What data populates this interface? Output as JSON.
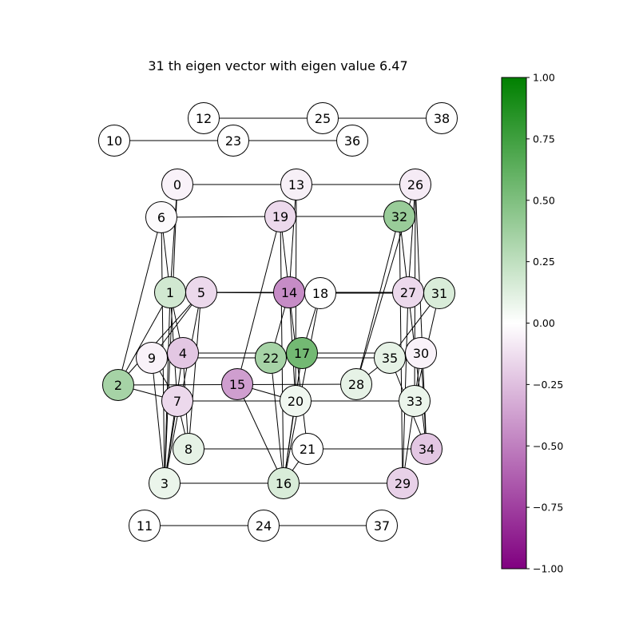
{
  "title": "31 th eigen vector with eigen value 6.47",
  "colorbar": {
    "min": -1.0,
    "max": 1.0,
    "ticks": [
      "1.00",
      "0.75",
      "0.50",
      "0.25",
      "0.00",
      "−0.25",
      "−0.50",
      "−0.75",
      "−1.00"
    ],
    "tick_values": [
      1.0,
      0.75,
      0.5,
      0.25,
      0.0,
      -0.25,
      -0.5,
      -0.75,
      -1.0
    ],
    "colors": {
      "neg": "#800080",
      "mid": "#ffffff",
      "pos": "#008000"
    }
  },
  "nodes": [
    {
      "id": "0",
      "value": -0.05
    },
    {
      "id": "1",
      "value": 0.18
    },
    {
      "id": "2",
      "value": 0.35
    },
    {
      "id": "3",
      "value": 0.08
    },
    {
      "id": "4",
      "value": -0.22
    },
    {
      "id": "5",
      "value": -0.15
    },
    {
      "id": "6",
      "value": -0.02
    },
    {
      "id": "7",
      "value": -0.15
    },
    {
      "id": "8",
      "value": 0.1
    },
    {
      "id": "9",
      "value": -0.05
    },
    {
      "id": "10",
      "value": 0.0
    },
    {
      "id": "11",
      "value": 0.0
    },
    {
      "id": "12",
      "value": 0.0
    },
    {
      "id": "13",
      "value": -0.06
    },
    {
      "id": "14",
      "value": -0.45
    },
    {
      "id": "15",
      "value": -0.38
    },
    {
      "id": "16",
      "value": 0.15
    },
    {
      "id": "17",
      "value": 0.55
    },
    {
      "id": "18",
      "value": 0.0
    },
    {
      "id": "19",
      "value": -0.15
    },
    {
      "id": "20",
      "value": 0.06
    },
    {
      "id": "21",
      "value": 0.0
    },
    {
      "id": "22",
      "value": 0.35
    },
    {
      "id": "23",
      "value": 0.0
    },
    {
      "id": "24",
      "value": 0.0
    },
    {
      "id": "25",
      "value": 0.0
    },
    {
      "id": "26",
      "value": -0.08
    },
    {
      "id": "27",
      "value": -0.15
    },
    {
      "id": "28",
      "value": 0.1
    },
    {
      "id": "29",
      "value": -0.18
    },
    {
      "id": "30",
      "value": -0.05
    },
    {
      "id": "31",
      "value": 0.15
    },
    {
      "id": "32",
      "value": 0.4
    },
    {
      "id": "33",
      "value": 0.08
    },
    {
      "id": "34",
      "value": -0.22
    },
    {
      "id": "35",
      "value": 0.1
    },
    {
      "id": "36",
      "value": 0.0
    },
    {
      "id": "37",
      "value": 0.0
    },
    {
      "id": "38",
      "value": 0.0
    }
  ],
  "edges": [
    [
      "10",
      "23"
    ],
    [
      "23",
      "36"
    ],
    [
      "12",
      "25"
    ],
    [
      "25",
      "38"
    ],
    [
      "11",
      "24"
    ],
    [
      "24",
      "37"
    ],
    [
      "0",
      "13"
    ],
    [
      "13",
      "26"
    ],
    [
      "6",
      "19"
    ],
    [
      "19",
      "32"
    ],
    [
      "5",
      "14"
    ],
    [
      "14",
      "27"
    ],
    [
      "1",
      "18"
    ],
    [
      "18",
      "31"
    ],
    [
      "4",
      "17"
    ],
    [
      "17",
      "30"
    ],
    [
      "9",
      "22"
    ],
    [
      "22",
      "35"
    ],
    [
      "2",
      "28"
    ],
    [
      "7",
      "20"
    ],
    [
      "20",
      "33"
    ],
    [
      "8",
      "21"
    ],
    [
      "21",
      "34"
    ],
    [
      "3",
      "16"
    ],
    [
      "16",
      "29"
    ],
    [
      "0",
      "1"
    ],
    [
      "0",
      "3"
    ],
    [
      "6",
      "1"
    ],
    [
      "6",
      "3"
    ],
    [
      "6",
      "2"
    ],
    [
      "1",
      "2"
    ],
    [
      "1",
      "4"
    ],
    [
      "1",
      "3"
    ],
    [
      "1",
      "7"
    ],
    [
      "5",
      "9"
    ],
    [
      "5",
      "2"
    ],
    [
      "5",
      "3"
    ],
    [
      "5",
      "8"
    ],
    [
      "4",
      "8"
    ],
    [
      "4",
      "3"
    ],
    [
      "9",
      "3"
    ],
    [
      "9",
      "7"
    ],
    [
      "2",
      "7"
    ],
    [
      "7",
      "3"
    ],
    [
      "7",
      "8"
    ],
    [
      "13",
      "14"
    ],
    [
      "13",
      "20"
    ],
    [
      "19",
      "14"
    ],
    [
      "19",
      "16"
    ],
    [
      "14",
      "22"
    ],
    [
      "14",
      "21"
    ],
    [
      "14",
      "20"
    ],
    [
      "18",
      "17"
    ],
    [
      "18",
      "16"
    ],
    [
      "17",
      "20"
    ],
    [
      "17",
      "16"
    ],
    [
      "22",
      "16"
    ],
    [
      "15",
      "19"
    ],
    [
      "15",
      "20"
    ],
    [
      "15",
      "16"
    ],
    [
      "20",
      "16"
    ],
    [
      "21",
      "16"
    ],
    [
      "26",
      "27"
    ],
    [
      "26",
      "33"
    ],
    [
      "26",
      "34"
    ],
    [
      "26",
      "28"
    ],
    [
      "32",
      "27"
    ],
    [
      "32",
      "28"
    ],
    [
      "32",
      "29"
    ],
    [
      "27",
      "34"
    ],
    [
      "27",
      "29"
    ],
    [
      "31",
      "35"
    ],
    [
      "31",
      "33"
    ],
    [
      "30",
      "34"
    ],
    [
      "30",
      "33"
    ],
    [
      "35",
      "34"
    ],
    [
      "35",
      "28"
    ],
    [
      "33",
      "29"
    ]
  ]
}
